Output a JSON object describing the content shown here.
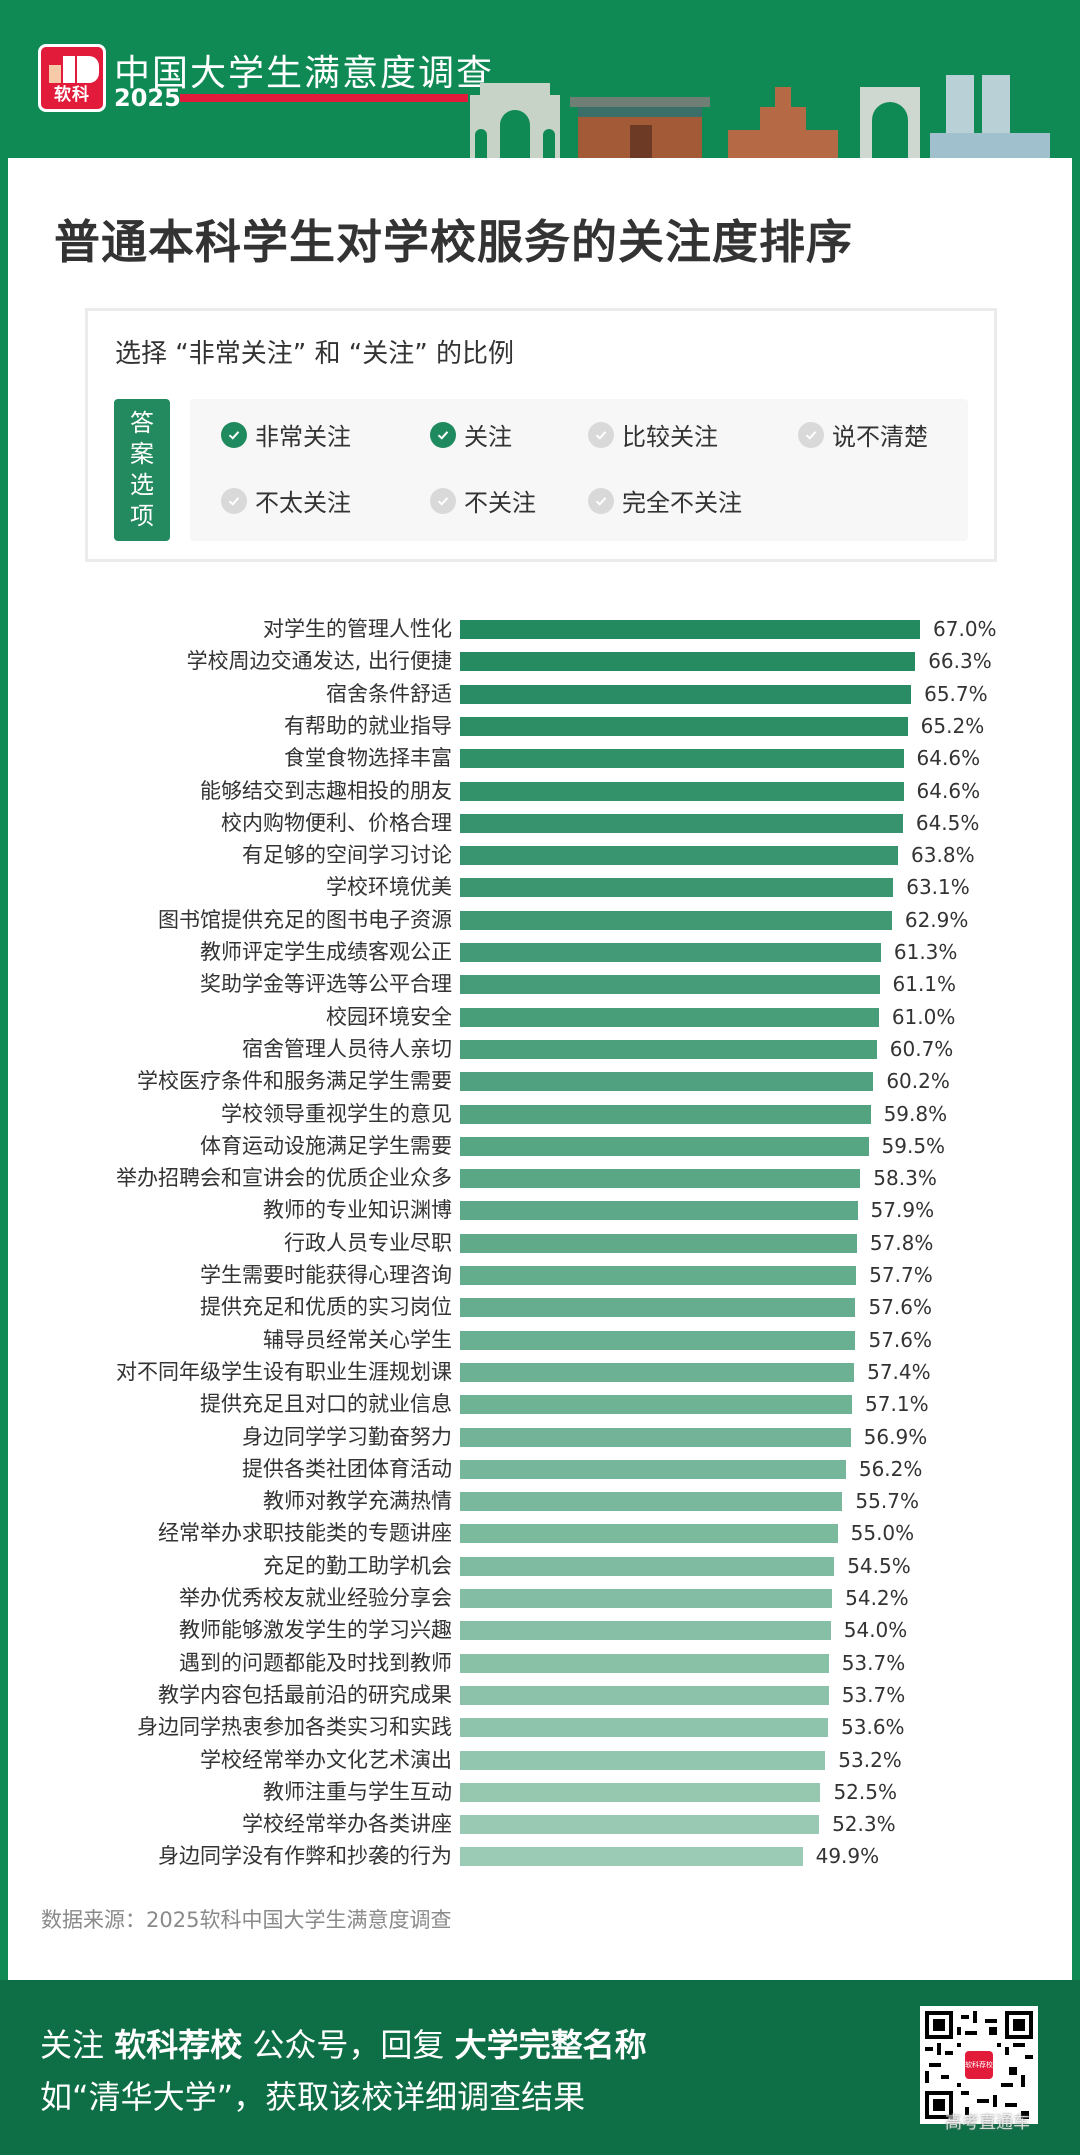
{
  "header": {
    "logo_text": "软科",
    "title": "中国大学生满意度调查",
    "year": "2025"
  },
  "page_title": "普通本科学生对学校服务的关注度排序",
  "legend": {
    "title": "选择 “非常关注” 和 “关注” 的比例",
    "tag": [
      "答",
      "案",
      "选",
      "项"
    ],
    "options": [
      {
        "label": "非常关注",
        "checked": true
      },
      {
        "label": "关注",
        "checked": true
      },
      {
        "label": "比较关注",
        "checked": false
      },
      {
        "label": "说不清楚",
        "checked": false
      },
      {
        "label": "不太关注",
        "checked": false
      },
      {
        "label": "不关注",
        "checked": false
      },
      {
        "label": "完全不关注",
        "checked": false
      }
    ]
  },
  "colors": {
    "bar_top": "#23895f",
    "bar_bottom": "#9ccbb5",
    "header_green": "#0f8a55",
    "footer_green": "#0e6e45",
    "brand_red": "#e31b3a"
  },
  "chart_data": {
    "type": "bar",
    "orientation": "horizontal",
    "title": "普通本科学生对学校服务的关注度排序",
    "subtitle": "选择 “非常关注” 和 “关注” 的比例",
    "xlabel": "",
    "ylabel": "",
    "unit": "%",
    "grid": false,
    "legend": "none",
    "categories": [
      "对学生的管理人性化",
      "学校周边交通发达, 出行便捷",
      "宿舍条件舒适",
      "有帮助的就业指导",
      "食堂食物选择丰富",
      "能够结交到志趣相投的朋友",
      "校内购物便利、价格合理",
      "有足够的空间学习讨论",
      "学校环境优美",
      "图书馆提供充足的图书电子资源",
      "教师评定学生成绩客观公正",
      "奖助学金等评选等公平合理",
      "校园环境安全",
      "宿舍管理人员待人亲切",
      "学校医疗条件和服务满足学生需要",
      "学校领导重视学生的意见",
      "体育运动设施满足学生需要",
      "举办招聘会和宣讲会的优质企业众多",
      "教师的专业知识渊博",
      "行政人员专业尽职",
      "学生需要时能获得心理咨询",
      "提供充足和优质的实习岗位",
      "辅导员经常关心学生",
      "对不同年级学生设有职业生涯规划课",
      "提供充足且对口的就业信息",
      "身边同学学习勤奋努力",
      "提供各类社团体育活动",
      "教师对教学充满热情",
      "经常举办求职技能类的专题讲座",
      "充足的勤工助学机会",
      "举办优秀校友就业经验分享会",
      "教师能够激发学生的学习兴趣",
      "遇到的问题都能及时找到教师",
      "教学内容包括最前沿的研究成果",
      "身边同学热衷参加各类实习和实践",
      "学校经常举办文化艺术演出",
      "教师注重与学生互动",
      "学校经常举办各类讲座",
      "身边同学没有作弊和抄袭的行为"
    ],
    "values": [
      67.0,
      66.3,
      65.7,
      65.2,
      64.6,
      64.6,
      64.5,
      63.8,
      63.1,
      62.9,
      61.3,
      61.1,
      61.0,
      60.7,
      60.2,
      59.8,
      59.5,
      58.3,
      57.9,
      57.8,
      57.7,
      57.6,
      57.6,
      57.4,
      57.1,
      56.9,
      56.2,
      55.7,
      55.0,
      54.5,
      54.2,
      54.0,
      53.7,
      53.7,
      53.6,
      53.2,
      52.5,
      52.3,
      49.9
    ],
    "value_labels": [
      "67.0%",
      "66.3%",
      "65.7%",
      "65.2%",
      "64.6%",
      "64.6%",
      "64.5%",
      "63.8%",
      "63.1%",
      "62.9%",
      "61.3%",
      "61.1%",
      "61.0%",
      "60.7%",
      "60.2%",
      "59.8%",
      "59.5%",
      "58.3%",
      "57.9%",
      "57.8%",
      "57.7%",
      "57.6%",
      "57.6%",
      "57.4%",
      "57.1%",
      "56.9%",
      "56.2%",
      "55.7%",
      "55.0%",
      "54.5%",
      "54.2%",
      "54.0%",
      "53.7%",
      "53.7%",
      "53.6%",
      "53.2%",
      "52.5%",
      "52.3%",
      "49.9%"
    ]
  },
  "source": "数据来源：2025软科中国大学生满意度调查",
  "footer": {
    "line1_parts": [
      "关注 ",
      "软科荐校",
      " 公众号，回复 ",
      "大学完整名称"
    ],
    "line2": "如“清华大学”，获取该校详细调查结果",
    "qr_center_text": "软科荐校",
    "watermark": "高考直通车"
  }
}
